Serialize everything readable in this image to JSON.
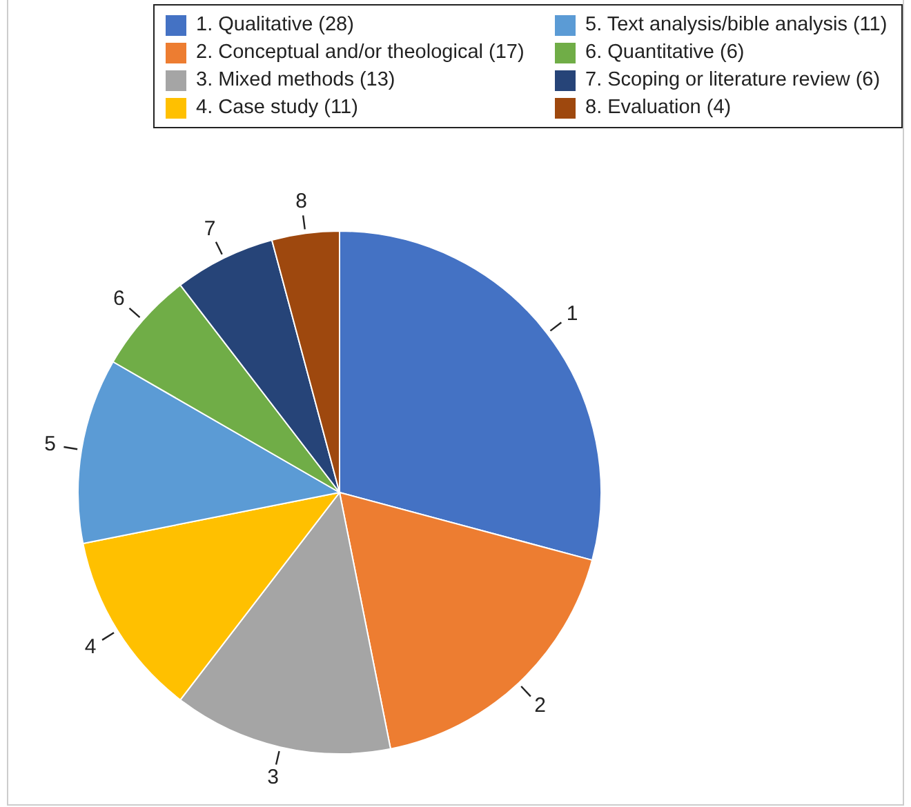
{
  "chart_data": {
    "type": "pie",
    "categories": [
      "1. Qualitative (28)",
      "2. Conceptual and/or theological (17)",
      "3. Mixed methods (13)",
      "4. Case study (11)",
      "5. Text analysis/bible analysis (11)",
      "6. Quantitative (6)",
      "7. Scoping or literature review (6)",
      "8. Evaluation (4)"
    ],
    "values": [
      28,
      17,
      13,
      11,
      11,
      6,
      6,
      4
    ],
    "colors": [
      "#4472c4",
      "#ed7d31",
      "#a5a5a5",
      "#ffc000",
      "#5b9bd5",
      "#70ad47",
      "#264478",
      "#9e480e"
    ],
    "annotations": [
      "1",
      "2",
      "3",
      "4",
      "5",
      "6",
      "7",
      "8"
    ],
    "legend": "top"
  }
}
